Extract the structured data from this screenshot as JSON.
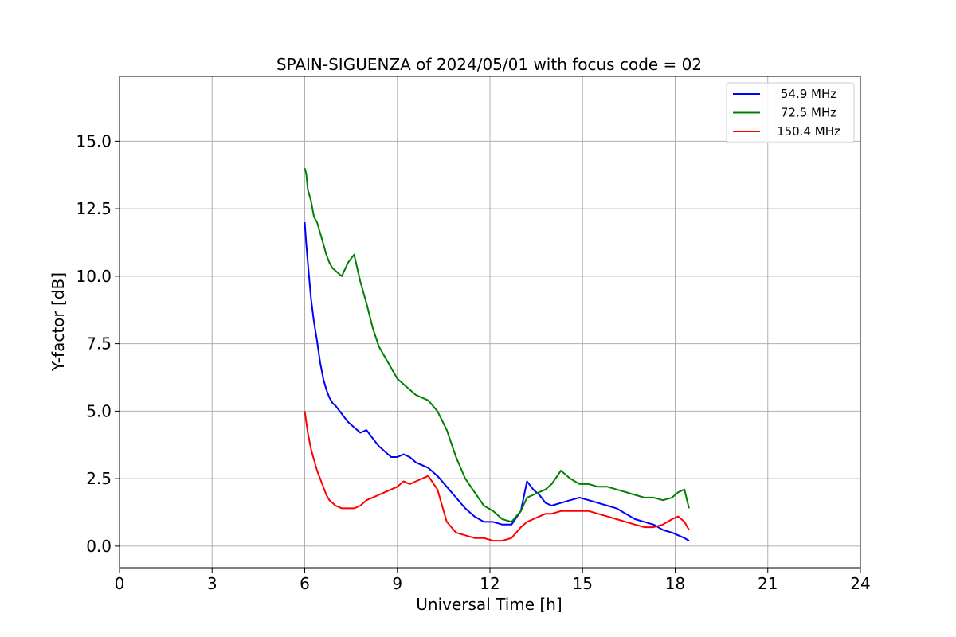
{
  "chart_data": {
    "type": "line",
    "title": "SPAIN-SIGUENZA of 2024/05/01 with focus code = 02",
    "xlabel": "Universal Time [h]",
    "ylabel": "Y-factor [dB]",
    "xlim": [
      0,
      24
    ],
    "ylim": [
      -0.8,
      17.4
    ],
    "xticks": [
      0,
      3,
      6,
      9,
      12,
      15,
      18,
      21,
      24
    ],
    "xtick_labels": [
      "0",
      "3",
      "6",
      "9",
      "12",
      "15",
      "18",
      "21",
      "24"
    ],
    "yticks": [
      0.0,
      2.5,
      5.0,
      7.5,
      10.0,
      12.5,
      15.0
    ],
    "ytick_labels": [
      "0.0",
      "2.5",
      "5.0",
      "7.5",
      "10.0",
      "12.5",
      "15.0"
    ],
    "grid": true,
    "legend_position": "top-right",
    "series": [
      {
        "name": "54.9 MHz",
        "color": "#0000ff",
        "x": [
          6.0,
          6.05,
          6.1,
          6.2,
          6.3,
          6.4,
          6.5,
          6.6,
          6.7,
          6.8,
          6.9,
          7.0,
          7.2,
          7.4,
          7.6,
          7.8,
          8.0,
          8.2,
          8.4,
          8.6,
          8.8,
          9.0,
          9.2,
          9.4,
          9.6,
          9.8,
          10.0,
          10.3,
          10.6,
          10.9,
          11.2,
          11.5,
          11.8,
          12.1,
          12.4,
          12.7,
          13.0,
          13.2,
          13.4,
          13.6,
          13.8,
          14.0,
          14.3,
          14.6,
          14.9,
          15.2,
          15.5,
          15.8,
          16.1,
          16.4,
          16.7,
          17.0,
          17.3,
          17.6,
          17.9,
          18.1,
          18.3,
          18.45
        ],
        "values": [
          12.0,
          11.2,
          10.5,
          9.2,
          8.3,
          7.6,
          6.8,
          6.2,
          5.8,
          5.5,
          5.3,
          5.2,
          4.9,
          4.6,
          4.4,
          4.2,
          4.3,
          4.0,
          3.7,
          3.5,
          3.3,
          3.3,
          3.4,
          3.3,
          3.1,
          3.0,
          2.9,
          2.6,
          2.2,
          1.8,
          1.4,
          1.1,
          0.9,
          0.9,
          0.8,
          0.8,
          1.3,
          2.4,
          2.1,
          1.9,
          1.6,
          1.5,
          1.6,
          1.7,
          1.8,
          1.7,
          1.6,
          1.5,
          1.4,
          1.2,
          1.0,
          0.9,
          0.8,
          0.6,
          0.5,
          0.4,
          0.3,
          0.2
        ]
      },
      {
        "name": "72.5 MHz",
        "color": "#008000",
        "x": [
          6.0,
          6.05,
          6.1,
          6.2,
          6.3,
          6.4,
          6.5,
          6.6,
          6.7,
          6.8,
          6.9,
          7.0,
          7.2,
          7.4,
          7.6,
          7.8,
          8.0,
          8.2,
          8.4,
          8.6,
          8.8,
          9.0,
          9.2,
          9.4,
          9.6,
          9.8,
          10.0,
          10.3,
          10.6,
          10.9,
          11.2,
          11.5,
          11.8,
          12.1,
          12.4,
          12.7,
          13.0,
          13.2,
          13.4,
          13.6,
          13.8,
          14.0,
          14.3,
          14.6,
          14.9,
          15.2,
          15.5,
          15.8,
          16.1,
          16.4,
          16.7,
          17.0,
          17.3,
          17.6,
          17.9,
          18.1,
          18.3,
          18.45
        ],
        "values": [
          14.0,
          13.8,
          13.2,
          12.8,
          12.2,
          12.0,
          11.6,
          11.2,
          10.8,
          10.5,
          10.3,
          10.2,
          10.0,
          10.5,
          10.8,
          9.8,
          9.0,
          8.1,
          7.4,
          7.0,
          6.6,
          6.2,
          6.0,
          5.8,
          5.6,
          5.5,
          5.4,
          5.0,
          4.3,
          3.3,
          2.5,
          2.0,
          1.5,
          1.3,
          1.0,
          0.9,
          1.3,
          1.8,
          1.9,
          2.0,
          2.1,
          2.3,
          2.8,
          2.5,
          2.3,
          2.3,
          2.2,
          2.2,
          2.1,
          2.0,
          1.9,
          1.8,
          1.8,
          1.7,
          1.8,
          2.0,
          2.1,
          1.4
        ]
      },
      {
        "name": "150.4 MHz",
        "color": "#ff0000",
        "x": [
          6.0,
          6.05,
          6.1,
          6.2,
          6.3,
          6.4,
          6.5,
          6.6,
          6.7,
          6.8,
          6.9,
          7.0,
          7.2,
          7.4,
          7.6,
          7.8,
          8.0,
          8.2,
          8.4,
          8.6,
          8.8,
          9.0,
          9.2,
          9.4,
          9.6,
          9.8,
          10.0,
          10.3,
          10.6,
          10.9,
          11.2,
          11.5,
          11.8,
          12.1,
          12.4,
          12.7,
          13.0,
          13.2,
          13.4,
          13.6,
          13.8,
          14.0,
          14.3,
          14.6,
          14.9,
          15.2,
          15.5,
          15.8,
          16.1,
          16.4,
          16.7,
          17.0,
          17.3,
          17.6,
          17.9,
          18.1,
          18.3,
          18.45
        ],
        "values": [
          5.0,
          4.6,
          4.2,
          3.6,
          3.2,
          2.8,
          2.5,
          2.2,
          1.9,
          1.7,
          1.6,
          1.5,
          1.4,
          1.4,
          1.4,
          1.5,
          1.7,
          1.8,
          1.9,
          2.0,
          2.1,
          2.2,
          2.4,
          2.3,
          2.4,
          2.5,
          2.6,
          2.1,
          0.9,
          0.5,
          0.4,
          0.3,
          0.3,
          0.2,
          0.2,
          0.3,
          0.7,
          0.9,
          1.0,
          1.1,
          1.2,
          1.2,
          1.3,
          1.3,
          1.3,
          1.3,
          1.2,
          1.1,
          1.0,
          0.9,
          0.8,
          0.7,
          0.7,
          0.8,
          1.0,
          1.1,
          0.9,
          0.6
        ]
      }
    ]
  }
}
